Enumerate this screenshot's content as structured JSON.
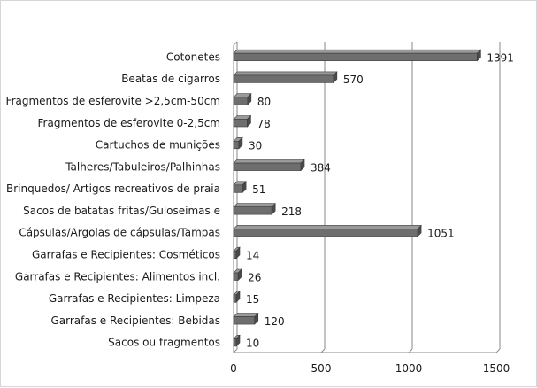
{
  "chart_data": {
    "type": "bar",
    "orientation": "horizontal",
    "style": "3d",
    "title": "",
    "xlabel": "",
    "ylabel": "",
    "xlim": [
      0,
      1500
    ],
    "x_ticks": [
      "0",
      "500",
      "1000",
      "1500"
    ],
    "grid": true,
    "legend": "none",
    "bar_color": "#6e6e6e",
    "categories": [
      "Cotonetes",
      "Beatas de cigarros",
      "Fragmentos de esferovite >2,5cm-50cm",
      "Fragmentos de esferovite 0-2,5cm",
      "Cartuchos de munições",
      "Talheres/Tabuleiros/Palhinhas",
      "Brinquedos/ Artigos recreativos de praia",
      "Sacos de batatas fritas/Guloseimas e",
      "Cápsulas/Argolas de cápsulas/Tampas",
      "Garrafas e Recipientes: Cosméticos",
      "Garrafas e Recipientes: Alimentos incl.",
      "Garrafas e Recipientes: Limpeza",
      "Garrafas e Recipientes: Bebidas",
      "Sacos ou fragmentos"
    ],
    "values": [
      1391,
      570,
      80,
      78,
      30,
      384,
      51,
      218,
      1051,
      14,
      26,
      15,
      120,
      10
    ],
    "value_labels": [
      "1391",
      "570",
      "80",
      "78",
      "30",
      "384",
      "51",
      "218",
      "1051",
      "14",
      "26",
      "15",
      "120",
      "10"
    ]
  }
}
